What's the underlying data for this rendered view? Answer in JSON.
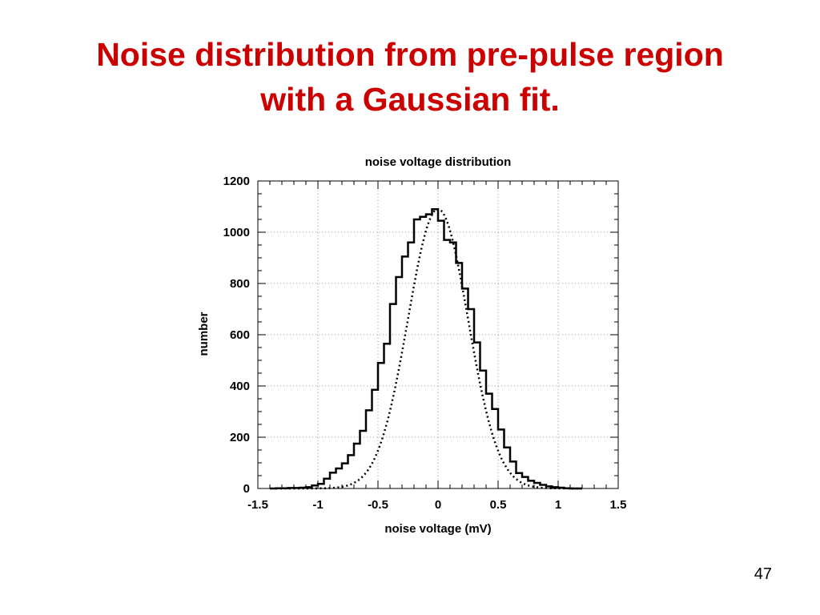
{
  "slide": {
    "title_line1": "Noise distribution from pre-pulse region",
    "title_line2": "with a Gaussian fit.",
    "page_number": "47",
    "title_color": "#cc0000"
  },
  "chart_data": {
    "type": "histogram",
    "title": "noise voltage distribution",
    "xlabel": "noise voltage (mV)",
    "ylabel": "number",
    "xlim": [
      -1.5,
      1.5
    ],
    "ylim": [
      0,
      1200
    ],
    "xticks": [
      "-1.5",
      "-1",
      "-0.5",
      "0",
      "0.5",
      "1",
      "1.5"
    ],
    "xtick_values": [
      -1.5,
      -1,
      -0.5,
      0,
      0.5,
      1,
      1.5
    ],
    "yticks": [
      "0",
      "200",
      "400",
      "600",
      "800",
      "1000",
      "1200"
    ],
    "ytick_values": [
      0,
      200,
      400,
      600,
      800,
      1000,
      1200
    ],
    "grid": true,
    "series": [
      {
        "style": "step",
        "bin_width": 0.05,
        "bin_left_edges": [
          -1.4,
          -1.35,
          -1.3,
          -1.25,
          -1.2,
          -1.15,
          -1.1,
          -1.05,
          -1.0,
          -0.95,
          -0.9,
          -0.85,
          -0.8,
          -0.75,
          -0.7,
          -0.65,
          -0.6,
          -0.55,
          -0.5,
          -0.45,
          -0.4,
          -0.35,
          -0.3,
          -0.25,
          -0.2,
          -0.15,
          -0.1,
          -0.05,
          0.0,
          0.05,
          0.1,
          0.15,
          0.2,
          0.25,
          0.3,
          0.35,
          0.4,
          0.45,
          0.5,
          0.55,
          0.6,
          0.65,
          0.7,
          0.75,
          0.8,
          0.85,
          0.9,
          0.95,
          1.0,
          1.05,
          1.1,
          1.15
        ],
        "values": [
          0,
          1,
          1,
          2,
          2,
          3,
          5,
          12,
          18,
          38,
          62,
          78,
          98,
          130,
          175,
          225,
          305,
          385,
          490,
          565,
          720,
          825,
          905,
          960,
          1050,
          1060,
          1070,
          1090,
          1045,
          970,
          960,
          880,
          780,
          700,
          570,
          460,
          370,
          310,
          230,
          160,
          105,
          60,
          45,
          30,
          22,
          14,
          8,
          5,
          3,
          1,
          0,
          0
        ]
      },
      {
        "style": "dotted",
        "fit": "gaussian",
        "amplitude": 1090,
        "mean": 0.0,
        "sigma": 0.25,
        "x_range": [
          -1.35,
          1.2
        ]
      }
    ]
  }
}
